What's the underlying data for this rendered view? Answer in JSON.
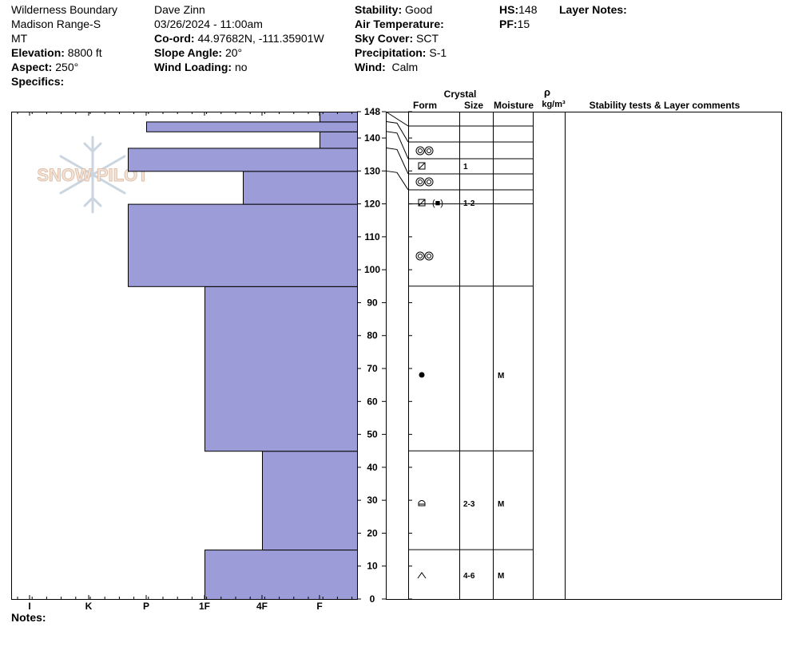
{
  "header": {
    "col1": [
      "Wilderness Boundary",
      "Madison Range-S",
      "MT"
    ],
    "elevation": {
      "label": "Elevation:",
      "value": "8800 ft"
    },
    "aspect": {
      "label": "Aspect:",
      "value": "250°"
    },
    "specifics": {
      "label": "Specifics:",
      "value": ""
    },
    "observer": "Dave Zinn",
    "datetime": "03/26/2024 - 11:00am",
    "coord": {
      "label": "Co-ord:",
      "value": "44.97682N, -111.35901W"
    },
    "slope": {
      "label": "Slope Angle:",
      "value": "20°"
    },
    "wind_loading": {
      "label": "Wind Loading:",
      "value": "no"
    },
    "stability": {
      "label": "Stability:",
      "value": "Good"
    },
    "air_temp": {
      "label": "Air Temperature:",
      "value": ""
    },
    "sky": {
      "label": "Sky Cover:",
      "value": "SCT"
    },
    "precip": {
      "label": "Precipitation:",
      "value": "S-1"
    },
    "wind": {
      "label": "Wind:",
      "value": "Calm"
    },
    "hs": {
      "label": "HS:",
      "value": "148"
    },
    "pf": {
      "label": "PF:",
      "value": "15"
    },
    "layer_notes": {
      "label": "Layer Notes:",
      "value": ""
    }
  },
  "logo": {
    "text": "SNOW PILOT"
  },
  "notes": {
    "label": "Notes:",
    "value": ""
  },
  "table_headers": {
    "crystal": "Crystal",
    "form": "Form",
    "size": "Size",
    "moisture": "Moisture",
    "rho": "ρ",
    "density_unit": "kg/m³",
    "stability": "Stability tests & Layer comments"
  },
  "chart_data": {
    "type": "bar",
    "orientation": "horizontal",
    "xlabel": "",
    "ylabel": "",
    "hardness_ticks": [
      "I",
      "K",
      "P",
      "1F",
      "4F",
      "F"
    ],
    "y_ticks": [
      "0",
      "10",
      "20",
      "30",
      "40",
      "50",
      "60",
      "70",
      "80",
      "90",
      "100",
      "110",
      "120",
      "130",
      "140",
      "148"
    ],
    "ylim": [
      0,
      148
    ],
    "layers": [
      {
        "bottom": 0,
        "top": 15,
        "hardness": "1F"
      },
      {
        "bottom": 15,
        "top": 45,
        "hardness": "4F"
      },
      {
        "bottom": 45,
        "top": 95,
        "hardness": "1F"
      },
      {
        "bottom": 95,
        "top": 120,
        "hardness": "P+"
      },
      {
        "bottom": 120,
        "top": 130,
        "hardness": "4F+"
      },
      {
        "bottom": 130,
        "top": 137,
        "hardness": "P+"
      },
      {
        "bottom": 137,
        "top": 142,
        "hardness": "F"
      },
      {
        "bottom": 142,
        "top": 145,
        "hardness": "P"
      },
      {
        "bottom": 145,
        "top": 148,
        "hardness": "F"
      }
    ],
    "layer_rows": [
      {
        "form": "precip-particle-icon",
        "size": "",
        "moisture": ""
      },
      {
        "form": "faceted-icon",
        "size": "1",
        "moisture": ""
      },
      {
        "form": "precip-particle-icon",
        "size": "",
        "moisture": ""
      },
      {
        "form": "faceted-mixed-icon",
        "size": "1-2",
        "moisture": ""
      },
      {
        "form": "precip-particle-icon",
        "size": "",
        "moisture": ""
      },
      {
        "form": "melt-form-icon",
        "size": "",
        "moisture": "M"
      },
      {
        "form": "depth-hoar-rounding-icon",
        "size": "2-3",
        "moisture": "M"
      },
      {
        "form": "depth-hoar-icon",
        "size": "4-6",
        "moisture": "M"
      }
    ]
  }
}
